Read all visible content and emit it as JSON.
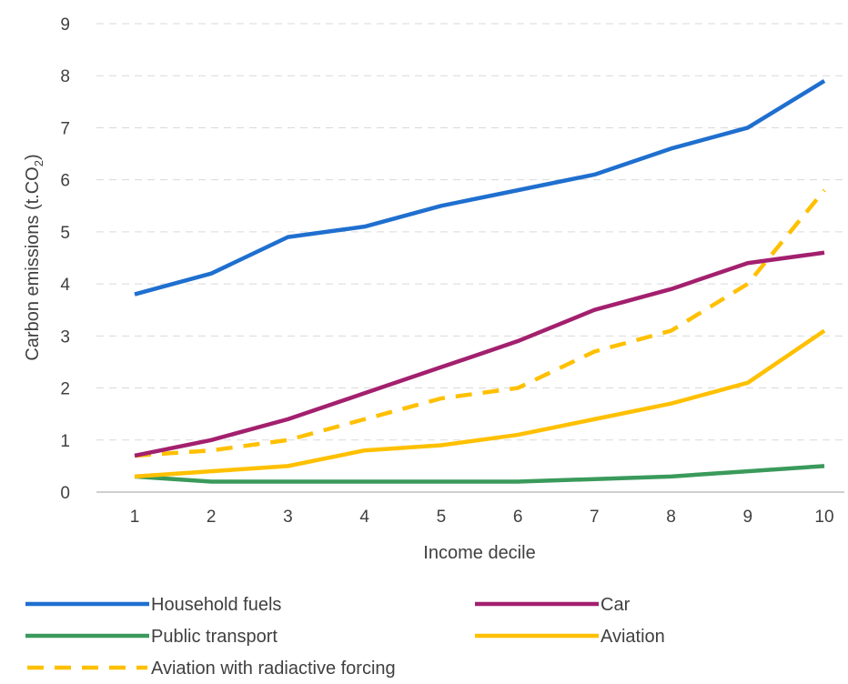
{
  "chart_data": {
    "type": "line",
    "title": "",
    "xlabel": "Income decile",
    "ylabel_main": "Carbon emissions (t.CO",
    "ylabel_sub": "2",
    "ylabel_end": ")",
    "ylim": [
      0,
      9
    ],
    "yticks": [
      "0",
      "1",
      "2",
      "3",
      "4",
      "5",
      "6",
      "7",
      "8",
      "9"
    ],
    "categories": [
      "1",
      "2",
      "3",
      "4",
      "5",
      "6",
      "7",
      "8",
      "9",
      "10"
    ],
    "grid": true,
    "legend_position": "bottom",
    "series": [
      {
        "name": "Household fuels",
        "color": "#1f6fcf",
        "dashed": false,
        "values": [
          3.8,
          4.2,
          4.9,
          5.1,
          5.5,
          5.8,
          6.1,
          6.6,
          7.0,
          7.9
        ]
      },
      {
        "name": "Car",
        "color": "#a3206e",
        "dashed": false,
        "values": [
          0.7,
          1.0,
          1.4,
          1.9,
          2.4,
          2.9,
          3.5,
          3.9,
          4.4,
          4.6
        ]
      },
      {
        "name": "Public transport",
        "color": "#3a9a5b",
        "dashed": false,
        "values": [
          0.3,
          0.2,
          0.2,
          0.2,
          0.2,
          0.2,
          0.25,
          0.3,
          0.4,
          0.5
        ]
      },
      {
        "name": "Aviation",
        "color": "#ffc000",
        "dashed": false,
        "values": [
          0.3,
          0.4,
          0.5,
          0.8,
          0.9,
          1.1,
          1.4,
          1.7,
          2.1,
          3.1
        ]
      },
      {
        "name": "Aviation with radiactive forcing",
        "color": "#ffc000",
        "dashed": true,
        "values": [
          0.7,
          0.8,
          1.0,
          1.4,
          1.8,
          2.0,
          2.7,
          3.1,
          4.0,
          5.8
        ]
      }
    ]
  }
}
